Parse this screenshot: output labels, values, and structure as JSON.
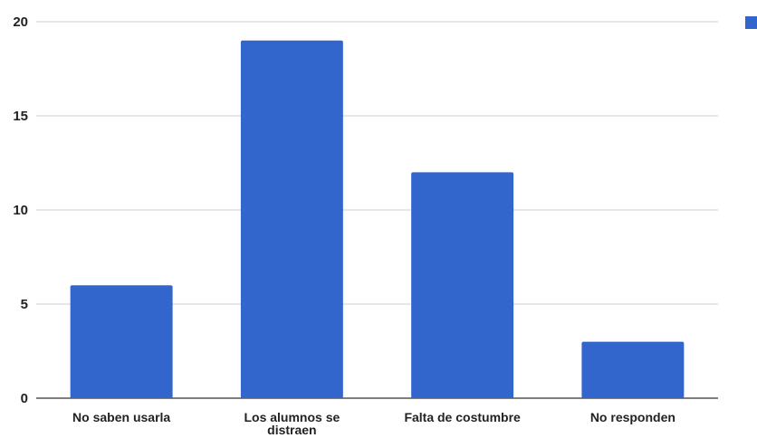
{
  "chart_data": {
    "type": "bar",
    "categories": [
      [
        "No saben usarla"
      ],
      [
        "Los alumnos se",
        "distraen"
      ],
      [
        "Falta de costumbre"
      ],
      [
        "No responden"
      ]
    ],
    "series": [
      {
        "values": [
          6,
          19,
          12,
          3
        ],
        "color": "#3366cc"
      }
    ],
    "title": "",
    "xlabel": "",
    "ylabel": "",
    "ylim": [
      0,
      20
    ],
    "yticks": [
      0,
      5,
      10,
      15,
      20
    ],
    "grid": true,
    "legend": "top-right",
    "colors": {
      "bar": "#3366cc",
      "grid": "#cfcfcf",
      "axis": "#333333",
      "text": "#222222"
    }
  }
}
